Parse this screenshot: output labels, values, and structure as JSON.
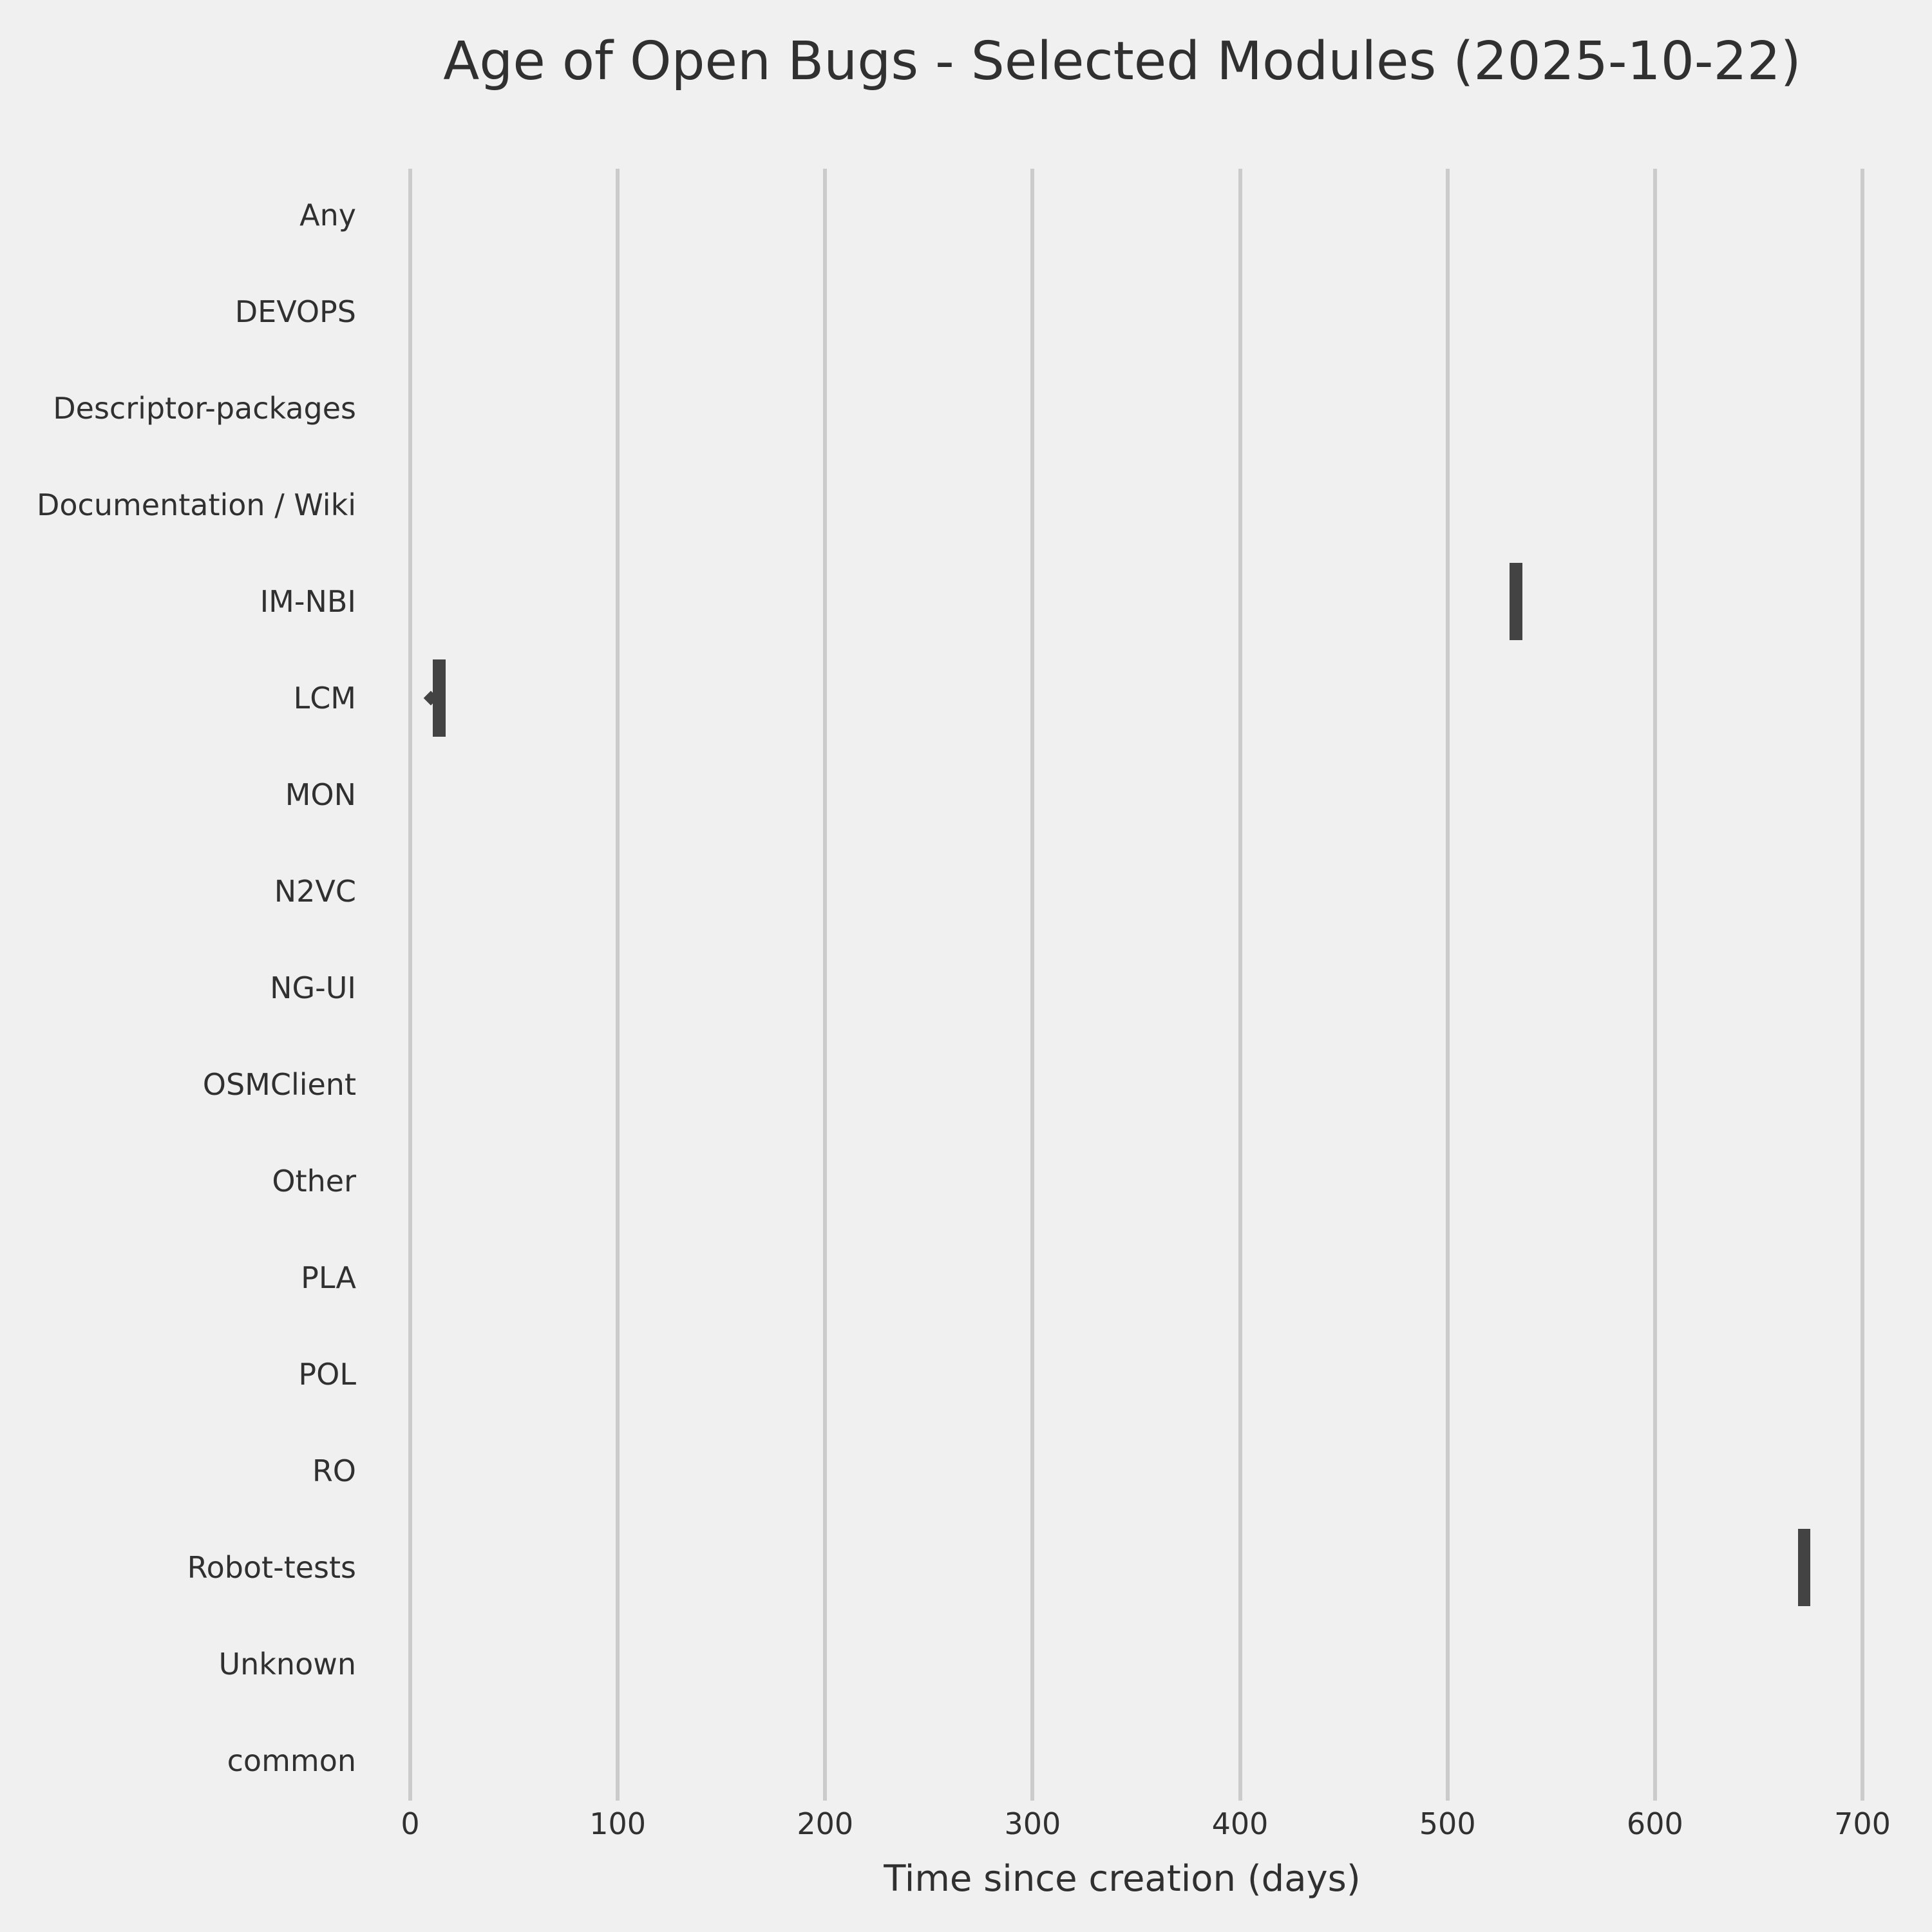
{
  "title": "Age of Open Bugs - Selected Modules (2025-10-22)",
  "chart_data": {
    "type": "boxplot",
    "orientation": "horizontal",
    "title": "Age of Open Bugs - Selected Modules (2025-10-22)",
    "xlabel": "Time since creation (days)",
    "ylabel": "",
    "categories": [
      "Any",
      "DEVOPS",
      "Descriptor-packages",
      "Documentation / Wiki",
      "IM-NBI",
      "LCM",
      "MON",
      "N2VC",
      "NG-UI",
      "OSMClient",
      "Other",
      "PLA",
      "POL",
      "RO",
      "Robot-tests",
      "Unknown",
      "common"
    ],
    "x_ticks": [
      0,
      100,
      200,
      300,
      400,
      500,
      600,
      700
    ],
    "xlim": [
      -24,
      710
    ],
    "grid": "vertical-gridlines-only",
    "legend": "none",
    "boxes": [
      {
        "category": "IM-NBI",
        "q1": 530,
        "median": 533,
        "q3": 536,
        "whisker_low": 530,
        "whisker_high": 536,
        "fliers": []
      },
      {
        "category": "LCM",
        "q1": 11,
        "median": 14,
        "q3": 17,
        "whisker_low": 11,
        "whisker_high": 17,
        "fliers": [
          10
        ]
      },
      {
        "category": "Robot-tests",
        "q1": 669,
        "median": 672,
        "q3": 675,
        "whisker_low": 669,
        "whisker_high": 675,
        "fliers": []
      }
    ],
    "empty_categories": [
      "Any",
      "DEVOPS",
      "Descriptor-packages",
      "Documentation / Wiki",
      "MON",
      "N2VC",
      "NG-UI",
      "OSMClient",
      "Other",
      "PLA",
      "POL",
      "RO",
      "Unknown",
      "common"
    ]
  },
  "colors": {
    "background": "#f0f0f0",
    "gridline": "#cbcbcb",
    "box": "#434343",
    "text": "#303030"
  }
}
